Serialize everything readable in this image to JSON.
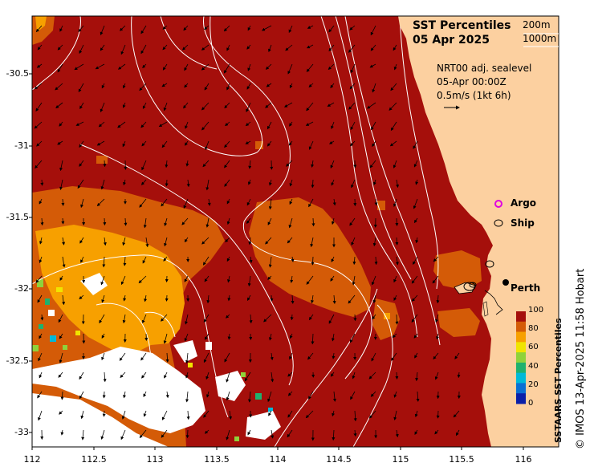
{
  "map": {
    "title_line1": "SST Percentiles",
    "title_line2": "05 Apr 2025",
    "contours": [
      "200m",
      "1000m"
    ],
    "info_lines": [
      "NRT00 adj. sealevel",
      "05-Apr 00:00Z",
      "0.5m/s (1kt 6h)"
    ],
    "legend": {
      "argo": "Argo",
      "ship": "Ship"
    },
    "city": "Perth",
    "credit": "© IMOS 13-Apr-2025 11:58 Hobart",
    "lat_ticks": [
      "-30.5",
      "-31",
      "-31.5",
      "-32",
      "-32.5",
      "-33"
    ],
    "lon_ticks": [
      "112",
      "112.5",
      "113",
      "113.5",
      "114",
      "114.5",
      "115",
      "115.5",
      "116"
    ],
    "colorbar": {
      "title": "SSTAARS SST Percentiles",
      "ticks": [
        "100",
        "80",
        "60",
        "40",
        "20",
        "0"
      ],
      "colors": [
        "#a50f0b",
        "#d45b07",
        "#f7a000",
        "#f0e400",
        "#8fd23b",
        "#1fb16e",
        "#00b9d8",
        "#0a6fd3",
        "#0a1fa8"
      ]
    },
    "colors": {
      "land": "#fcd0a0",
      "hot": "#a50f0b",
      "warm": "#d45b07",
      "mid": "#f7a000",
      "argo": "#e000e0"
    }
  }
}
